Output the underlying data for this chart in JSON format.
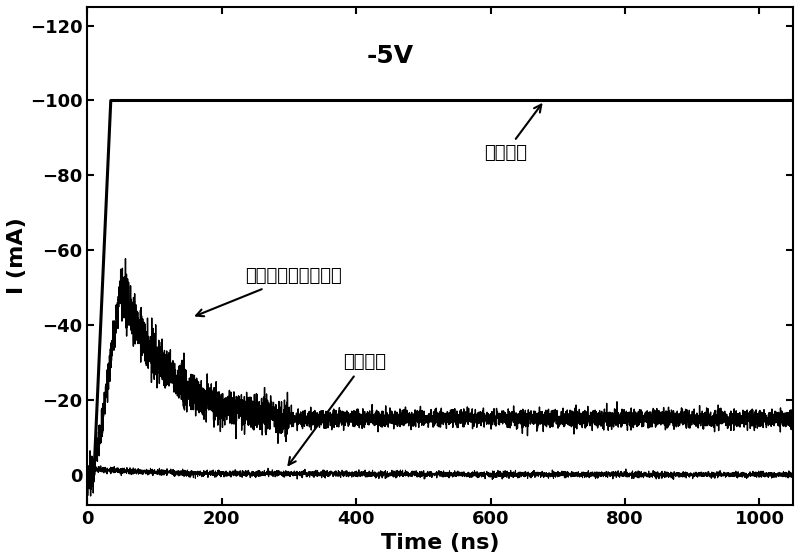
{
  "xlabel": "Time (ns)",
  "ylabel": "I (mA)",
  "xlim": [
    0,
    1050
  ],
  "ylim": [
    -125,
    8
  ],
  "xticks": [
    0,
    200,
    400,
    600,
    800,
    1000
  ],
  "yticks": [
    0,
    -20,
    -40,
    -60,
    -80,
    -100,
    -120
  ],
  "label_5v": "-5V",
  "label_pulse": "极化脉冲",
  "label_total": "通过漏电薄膜总电流",
  "label_disp": "位移电流",
  "bg_color": "#ffffff",
  "line_color": "#000000"
}
